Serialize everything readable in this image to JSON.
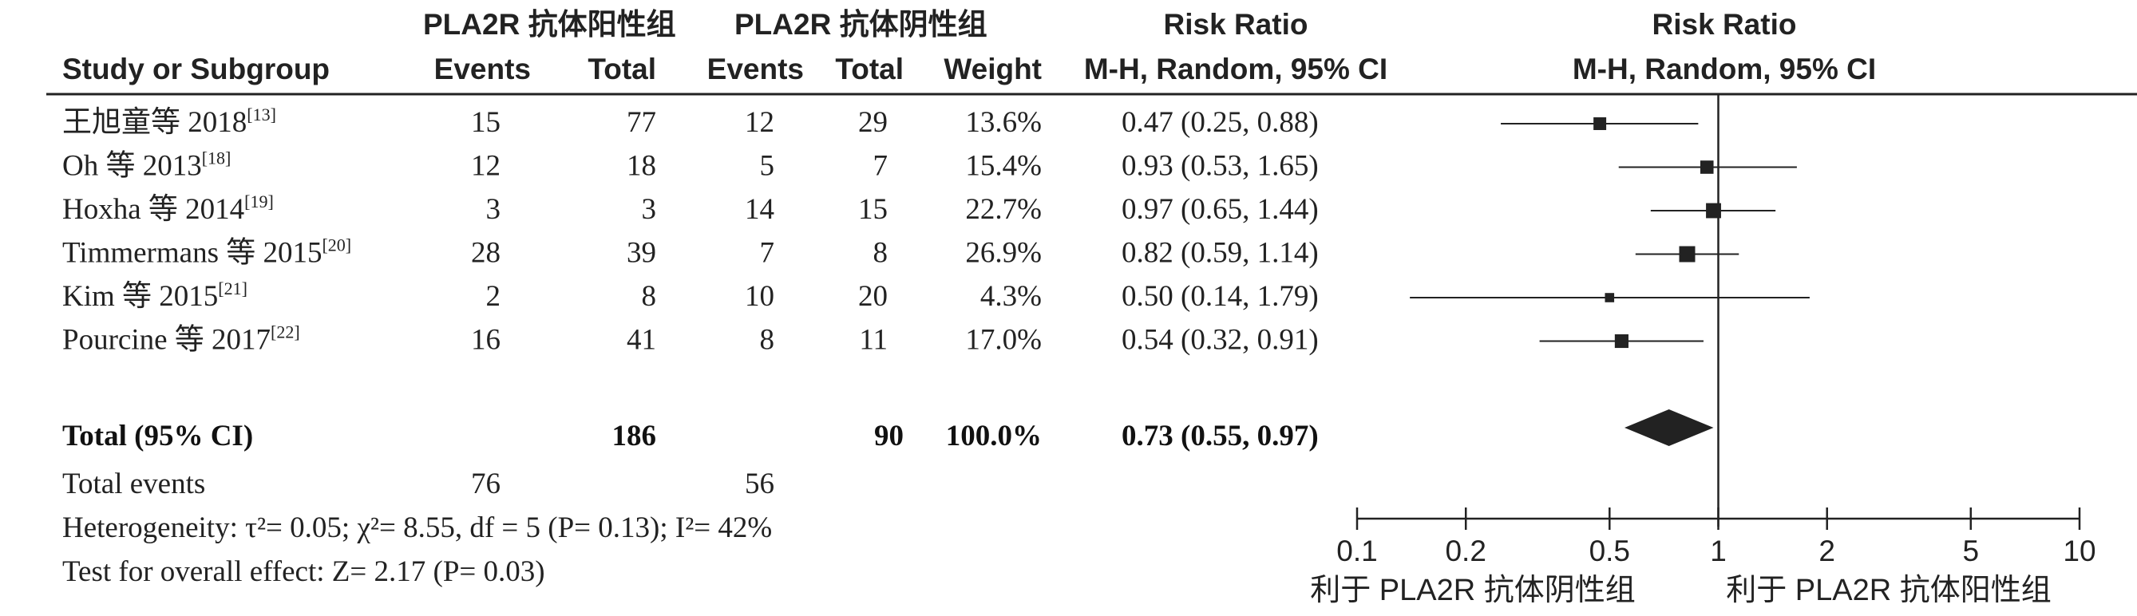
{
  "header": {
    "group1_title": "PLA2R 抗体阳性组",
    "group2_title": "PLA2R 抗体阴性组",
    "col_study": "Study or Subgroup",
    "col_events1": "Events",
    "col_total1": "Total",
    "col_events2": "Events",
    "col_total2": "Total",
    "col_weight": "Weight",
    "col_rr_title": "Risk Ratio",
    "col_rr_method": "M-H, Random, 95% CI",
    "plot_title": "Risk Ratio",
    "plot_method": "M-H, Random, 95% CI"
  },
  "footer": {
    "total_events_label": "Total events",
    "total_events_g1": "76",
    "total_events_g2": "56",
    "heterogeneity": "Heterogeneity: τ²= 0.05; χ²= 8.55, df = 5 (P= 0.13); I²= 42%",
    "overall_effect": "Test for overall effect: Z= 2.17 (P= 0.03)"
  },
  "axis_labels": {
    "favours_left": "利于 PLA2R 抗体阴性组",
    "favours_right": "利于 PLA2R 抗体阳性组"
  },
  "colors": {
    "text": "#222222",
    "marker": "#222222"
  },
  "chart_data": {
    "type": "forest",
    "scale": "log",
    "xlim": [
      0.1,
      10
    ],
    "null_value": 1,
    "x_ticks": [
      "0.1",
      "0.2",
      "0.5",
      "1",
      "2",
      "5",
      "10"
    ],
    "studies": [
      {
        "name": "王旭童等 2018",
        "ref": "[13]",
        "events1": "15",
        "total1": "77",
        "events2": "12",
        "total2": "29",
        "weight_label": "13.6%",
        "weight": 13.6,
        "rr": 0.47,
        "lo": 0.25,
        "hi": 0.88,
        "ci_label": "0.47 (0.25, 0.88)"
      },
      {
        "name": "Oh 等 2013",
        "ref": "[18]",
        "events1": "12",
        "total1": "18",
        "events2": "5",
        "total2": "7",
        "weight_label": "15.4%",
        "weight": 15.4,
        "rr": 0.93,
        "lo": 0.53,
        "hi": 1.65,
        "ci_label": "0.93 (0.53, 1.65)"
      },
      {
        "name": "Hoxha 等 2014",
        "ref": "[19]",
        "events1": "3",
        "total1": "3",
        "events2": "14",
        "total2": "15",
        "weight_label": "22.7%",
        "weight": 22.7,
        "rr": 0.97,
        "lo": 0.65,
        "hi": 1.44,
        "ci_label": "0.97 (0.65, 1.44)"
      },
      {
        "name": "Timmermans 等 2015",
        "ref": "[20]",
        "events1": "28",
        "total1": "39",
        "events2": "7",
        "total2": "8",
        "weight_label": "26.9%",
        "weight": 26.9,
        "rr": 0.82,
        "lo": 0.59,
        "hi": 1.14,
        "ci_label": "0.82 (0.59, 1.14)"
      },
      {
        "name": "Kim 等 2015",
        "ref": "[21]",
        "events1": "2",
        "total1": "8",
        "events2": "10",
        "total2": "20",
        "weight_label": "4.3%",
        "weight": 4.3,
        "rr": 0.5,
        "lo": 0.14,
        "hi": 1.79,
        "ci_label": "0.50 (0.14, 1.79)"
      },
      {
        "name": "Pourcine 等 2017",
        "ref": "[22]",
        "events1": "16",
        "total1": "41",
        "events2": "8",
        "total2": "11",
        "weight_label": "17.0%",
        "weight": 17.0,
        "rr": 0.54,
        "lo": 0.32,
        "hi": 0.91,
        "ci_label": "0.54 (0.32, 0.91)"
      }
    ],
    "total": {
      "name": "Total (95% CI)",
      "total1": "186",
      "total2": "90",
      "weight_label": "100.0%",
      "rr": 0.73,
      "lo": 0.55,
      "hi": 0.97,
      "ci_label": "0.73 (0.55, 0.97)"
    }
  }
}
